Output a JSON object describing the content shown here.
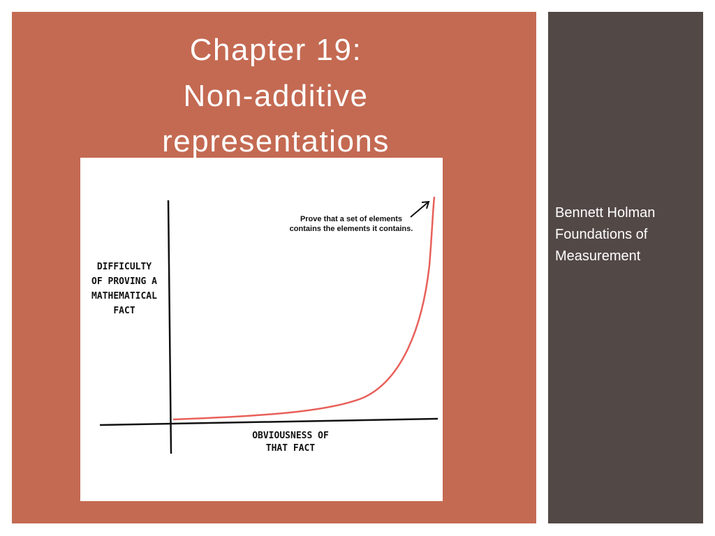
{
  "slide": {
    "title": [
      "Chapter 19:",
      "Non-additive",
      "representations"
    ],
    "sidebar": [
      "Bennett Holman",
      "Foundations of",
      "Measurement"
    ]
  },
  "figure": {
    "y_label": [
      "DIFFICULTY",
      "OF PROVING A",
      "MATHEMATICAL",
      "FACT"
    ],
    "x_label": [
      "OBVIOUSNESS OF",
      "THAT FACT"
    ],
    "annotation": [
      "Prove that a set of elements",
      "contains the elements it contains."
    ]
  }
}
